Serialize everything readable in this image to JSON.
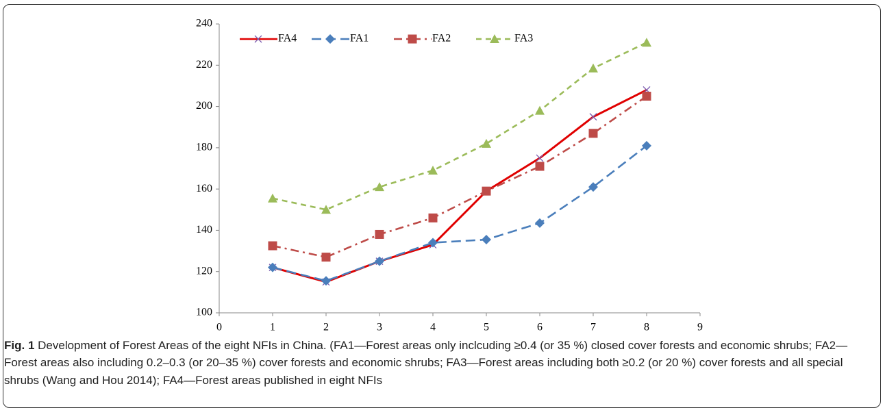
{
  "chart_data": {
    "type": "line",
    "x": [
      1,
      2,
      3,
      4,
      5,
      6,
      7,
      8
    ],
    "series": [
      {
        "name": "FA4",
        "color": "#e00000",
        "values": [
          122,
          115,
          125,
          133,
          159,
          175,
          195,
          208
        ]
      },
      {
        "name": "FA1",
        "color": "#4a7ebb",
        "values": [
          122,
          115.5,
          125,
          134,
          135.5,
          143.5,
          161,
          181
        ]
      },
      {
        "name": "FA2",
        "color": "#be4b48",
        "values": [
          132.5,
          127,
          138,
          146,
          159,
          171,
          187,
          205
        ]
      },
      {
        "name": "FA3",
        "color": "#9bbb59",
        "values": [
          155.5,
          150,
          161,
          169,
          182,
          198,
          218.5,
          231
        ]
      }
    ],
    "xlim": [
      0,
      9
    ],
    "xticks": [
      0,
      1,
      2,
      3,
      4,
      5,
      6,
      7,
      8,
      9
    ],
    "ylim": [
      100,
      240
    ],
    "yticks": [
      100,
      120,
      140,
      160,
      180,
      200,
      220,
      240
    ],
    "legend": "top"
  },
  "caption": {
    "label": "Fig. 1",
    "text": "Development of Forest Areas of the eight NFIs in China. (FA1—Forest areas only inclcuding ≥0.4 (or 35 %) closed cover forests and economic shrubs; FA2—Forest areas also including 0.2–0.3 (or 20–35 %) cover forests and economic shrubs; FA3—Forest areas including both ≥0.2 (or 20 %) cover forests and all special shrubs (Wang and Hou 2014); FA4—Forest areas published in eight NFIs"
  }
}
